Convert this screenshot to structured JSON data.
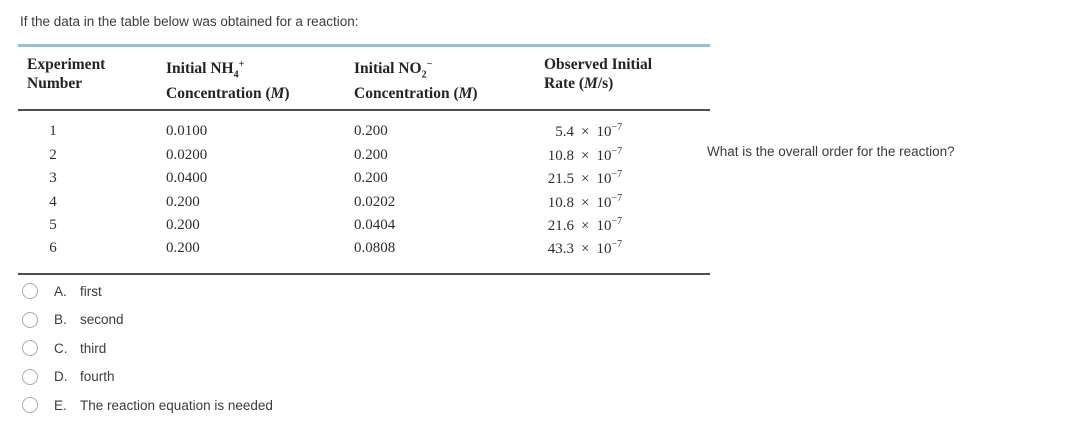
{
  "intro": "If the data in the table below was obtained for a reaction:",
  "prompt": "What is the overall order for the reaction?",
  "table": {
    "col1": {
      "line1": "Experiment",
      "line2": "Number"
    },
    "col2": {
      "l1_pre": "Initial NH",
      "l1_sub": "4",
      "l1_sup": "+",
      "l2_pre": "Concentration (",
      "l2_it": "M",
      "l2_post": ")"
    },
    "col3": {
      "l1_pre": "Initial NO",
      "l1_sub": "2",
      "l1_sup": "−",
      "l2_pre": "Concentration (",
      "l2_it": "M",
      "l2_post": ")"
    },
    "col4": {
      "line1": "Observed Initial",
      "l2_pre": "Rate (",
      "l2_it": "M",
      "l2_post": "/s)"
    },
    "rate_times": "×",
    "rate_base": "10",
    "rows": [
      {
        "num": "1",
        "nh4": "0.0100",
        "no2": "0.200",
        "mant": "5.4",
        "exp": "−7"
      },
      {
        "num": "2",
        "nh4": "0.0200",
        "no2": "0.200",
        "mant": "10.8",
        "exp": "−7"
      },
      {
        "num": "3",
        "nh4": "0.0400",
        "no2": "0.200",
        "mant": "21.5",
        "exp": "−7"
      },
      {
        "num": "4",
        "nh4": "0.200",
        "no2": "0.0202",
        "mant": "10.8",
        "exp": "−7"
      },
      {
        "num": "5",
        "nh4": "0.200",
        "no2": "0.0404",
        "mant": "21.6",
        "exp": "−7"
      },
      {
        "num": "6",
        "nh4": "0.200",
        "no2": "0.0808",
        "mant": "43.3",
        "exp": "−7"
      }
    ]
  },
  "options": [
    {
      "letter": "A.",
      "label": "first"
    },
    {
      "letter": "B.",
      "label": "second"
    },
    {
      "letter": "C.",
      "label": "third"
    },
    {
      "letter": "D.",
      "label": "fourth"
    },
    {
      "letter": "E.",
      "label": "The reaction equation is needed"
    }
  ],
  "colors": {
    "table_top_rule": "#9dbed0",
    "table_dark_rule": "#4e4e4e",
    "text": "#3b3b3b"
  }
}
